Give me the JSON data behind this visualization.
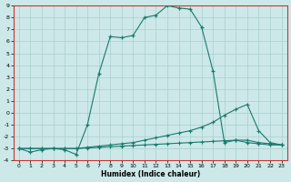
{
  "xlabel": "Humidex (Indice chaleur)",
  "bg_color": "#cce8e8",
  "grid_color": "#aacfcf",
  "line_color": "#1a7a6e",
  "xlim": [
    -0.5,
    23.5
  ],
  "ylim": [
    -4,
    9
  ],
  "xticks": [
    0,
    1,
    2,
    3,
    4,
    5,
    6,
    7,
    8,
    9,
    10,
    11,
    12,
    13,
    14,
    15,
    16,
    17,
    18,
    19,
    20,
    21,
    22,
    23
  ],
  "yticks": [
    -4,
    -3,
    -2,
    -1,
    0,
    1,
    2,
    3,
    4,
    5,
    6,
    7,
    8,
    9
  ],
  "line1_x": [
    0,
    1,
    2,
    3,
    4,
    5,
    6,
    7,
    8,
    9,
    10,
    11,
    12,
    13,
    14,
    15,
    16,
    17,
    18,
    19,
    20,
    21,
    22,
    23
  ],
  "line1_y": [
    -3.0,
    -3.3,
    -3.1,
    -3.0,
    -3.1,
    -3.5,
    -1.0,
    3.3,
    6.4,
    6.3,
    6.5,
    8.0,
    8.2,
    9.0,
    8.8,
    8.7,
    7.2,
    3.5,
    -2.5,
    -2.3,
    -2.5,
    -2.6,
    -2.7,
    -2.7
  ],
  "line2_x": [
    0,
    1,
    2,
    3,
    4,
    5,
    6,
    7,
    8,
    9,
    10,
    11,
    12,
    13,
    14,
    15,
    16,
    17,
    18,
    19,
    20,
    21,
    22,
    23
  ],
  "line2_y": [
    -3.0,
    -3.0,
    -3.0,
    -3.0,
    -3.0,
    -3.0,
    -2.9,
    -2.8,
    -2.7,
    -2.6,
    -2.5,
    -2.3,
    -2.1,
    -1.9,
    -1.7,
    -1.5,
    -1.2,
    -0.8,
    -0.2,
    0.3,
    0.7,
    -1.5,
    -2.5,
    -2.7
  ],
  "line3_x": [
    0,
    1,
    2,
    3,
    4,
    5,
    6,
    7,
    8,
    9,
    10,
    11,
    12,
    13,
    14,
    15,
    16,
    17,
    18,
    19,
    20,
    21,
    22,
    23
  ],
  "line3_y": [
    -3.0,
    -3.0,
    -3.0,
    -3.0,
    -3.0,
    -3.0,
    -2.95,
    -2.9,
    -2.85,
    -2.8,
    -2.75,
    -2.7,
    -2.65,
    -2.6,
    -2.55,
    -2.5,
    -2.45,
    -2.4,
    -2.35,
    -2.3,
    -2.3,
    -2.5,
    -2.6,
    -2.7
  ]
}
